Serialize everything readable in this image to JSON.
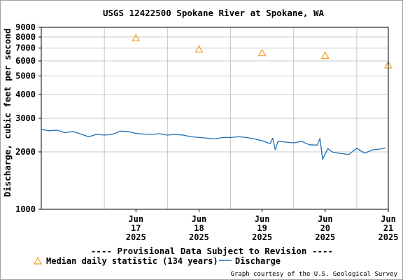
{
  "chart_data": {
    "type": "line",
    "title": "USGS 12422500 Spokane River at Spokane, WA",
    "ylabel": "Discharge, cubic feet per second",
    "y_scale": "log",
    "ylim": [
      1000,
      9000
    ],
    "y_ticks": [
      1000,
      2000,
      3000,
      4000,
      5000,
      6000,
      7000,
      8000,
      9000
    ],
    "y_tick_labels": [
      "1000",
      "2000",
      "3000",
      "4000",
      "5000",
      "6000",
      "7000",
      "8000",
      "9000"
    ],
    "xlim": [
      "2025-06-16T00:00",
      "2025-06-21T12:00"
    ],
    "x_ticks": [
      {
        "t": "2025-06-17T12:00",
        "month": "Jun",
        "day": "17",
        "year": "2025"
      },
      {
        "t": "2025-06-18T12:00",
        "month": "Jun",
        "day": "18",
        "year": "2025"
      },
      {
        "t": "2025-06-19T12:00",
        "month": "Jun",
        "day": "19",
        "year": "2025"
      },
      {
        "t": "2025-06-20T12:00",
        "month": "Jun",
        "day": "20",
        "year": "2025"
      },
      {
        "t": "2025-06-21T12:00",
        "month": "Jun",
        "day": "21",
        "year": "2025"
      }
    ],
    "x_gridlines": [
      "2025-06-17T00:00",
      "2025-06-18T00:00",
      "2025-06-19T00:00",
      "2025-06-20T00:00",
      "2025-06-21T00:00"
    ],
    "grid": true,
    "legend_placement": "bottom",
    "series": [
      {
        "name": "Discharge",
        "kind": "line",
        "color": "#1f6fb5",
        "points": [
          [
            "2025-06-16T00:00",
            2620
          ],
          [
            "2025-06-16T03:00",
            2580
          ],
          [
            "2025-06-16T06:00",
            2600
          ],
          [
            "2025-06-16T09:00",
            2520
          ],
          [
            "2025-06-16T12:00",
            2560
          ],
          [
            "2025-06-16T15:00",
            2480
          ],
          [
            "2025-06-16T18:00",
            2400
          ],
          [
            "2025-06-16T21:00",
            2470
          ],
          [
            "2025-06-17T00:00",
            2450
          ],
          [
            "2025-06-17T03:00",
            2470
          ],
          [
            "2025-06-17T06:00",
            2570
          ],
          [
            "2025-06-17T09:00",
            2560
          ],
          [
            "2025-06-17T12:00",
            2500
          ],
          [
            "2025-06-17T15:00",
            2480
          ],
          [
            "2025-06-17T18:00",
            2470
          ],
          [
            "2025-06-17T21:00",
            2490
          ],
          [
            "2025-06-18T00:00",
            2450
          ],
          [
            "2025-06-18T03:00",
            2470
          ],
          [
            "2025-06-18T06:00",
            2450
          ],
          [
            "2025-06-18T09:00",
            2400
          ],
          [
            "2025-06-18T12:00",
            2380
          ],
          [
            "2025-06-18T15:00",
            2360
          ],
          [
            "2025-06-18T18:00",
            2340
          ],
          [
            "2025-06-18T21:00",
            2380
          ],
          [
            "2025-06-19T00:00",
            2380
          ],
          [
            "2025-06-19T03:00",
            2400
          ],
          [
            "2025-06-19T06:00",
            2380
          ],
          [
            "2025-06-19T09:00",
            2340
          ],
          [
            "2025-06-19T12:00",
            2290
          ],
          [
            "2025-06-19T15:00",
            2210
          ],
          [
            "2025-06-19T16:00",
            2360
          ],
          [
            "2025-06-19T17:00",
            2050
          ],
          [
            "2025-06-19T18:00",
            2270
          ],
          [
            "2025-06-19T21:00",
            2250
          ],
          [
            "2025-06-20T00:00",
            2230
          ],
          [
            "2025-06-20T03:00",
            2270
          ],
          [
            "2025-06-20T06:00",
            2180
          ],
          [
            "2025-06-20T09:00",
            2170
          ],
          [
            "2025-06-20T10:00",
            2350
          ],
          [
            "2025-06-20T11:00",
            1830
          ],
          [
            "2025-06-20T13:00",
            2080
          ],
          [
            "2025-06-20T15:00",
            1990
          ],
          [
            "2025-06-20T18:00",
            1960
          ],
          [
            "2025-06-20T21:00",
            1940
          ],
          [
            "2025-06-21T00:00",
            2090
          ],
          [
            "2025-06-21T03:00",
            1970
          ],
          [
            "2025-06-21T06:00",
            2050
          ],
          [
            "2025-06-21T09:00",
            2070
          ],
          [
            "2025-06-21T11:00",
            2100
          ]
        ]
      },
      {
        "name": "Median daily statistic (134 years)",
        "kind": "marker",
        "marker": "triangle",
        "color": "#f0a020",
        "points": [
          [
            "2025-06-17T12:00",
            7900
          ],
          [
            "2025-06-18T12:00",
            6900
          ],
          [
            "2025-06-19T12:00",
            6600
          ],
          [
            "2025-06-20T12:00",
            6400
          ],
          [
            "2025-06-21T12:00",
            5700
          ]
        ]
      }
    ]
  },
  "provisional_note": "---- Provisional Data Subject to Revision ----",
  "legend": {
    "median_label": "Median daily statistic (134 years)",
    "discharge_label": "Discharge"
  },
  "credit": "Graph courtesy of the U.S. Geological Survey",
  "colors": {
    "discharge": "#1f6fb5",
    "median": "#f0a020",
    "note": "#cc0000",
    "grid": "#c8c8c8"
  }
}
